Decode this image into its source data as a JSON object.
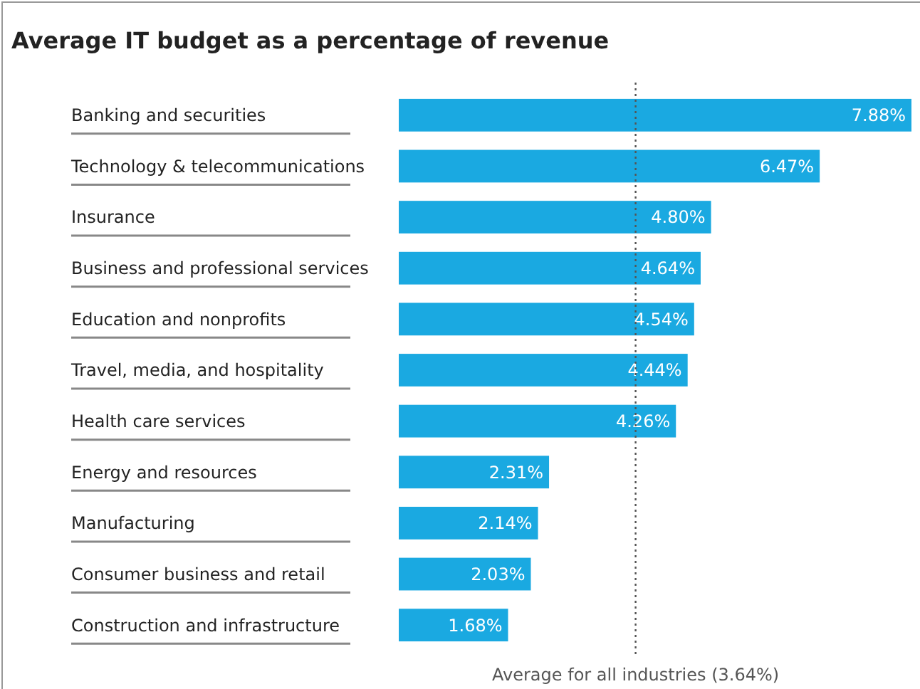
{
  "chart_data": {
    "type": "bar",
    "orientation": "horizontal",
    "title": "Average IT budget as a percentage of revenue",
    "categories": [
      "Banking and securities",
      "Technology & telecommunications",
      "Insurance",
      "Business and professional services",
      "Education and nonprofits",
      "Travel, media, and hospitality",
      "Health care services",
      "Energy and resources",
      "Manufacturing",
      "Consumer business and retail",
      "Construction and infrastructure"
    ],
    "values": [
      7.88,
      6.47,
      4.8,
      4.64,
      4.54,
      4.44,
      4.26,
      2.31,
      2.14,
      2.03,
      1.68
    ],
    "value_labels": [
      "7.88%",
      "6.47%",
      "4.80%",
      "4.64%",
      "4.54%",
      "4.44%",
      "4.26%",
      "2.31%",
      "2.14%",
      "2.03%",
      "1.68%"
    ],
    "color": "#1aa9e1",
    "ref_lines": [
      {
        "axis": "x",
        "value": 3.64,
        "label": "Average for all industries (3.64%)",
        "color": "#555555",
        "line_style": "dotted"
      }
    ]
  }
}
